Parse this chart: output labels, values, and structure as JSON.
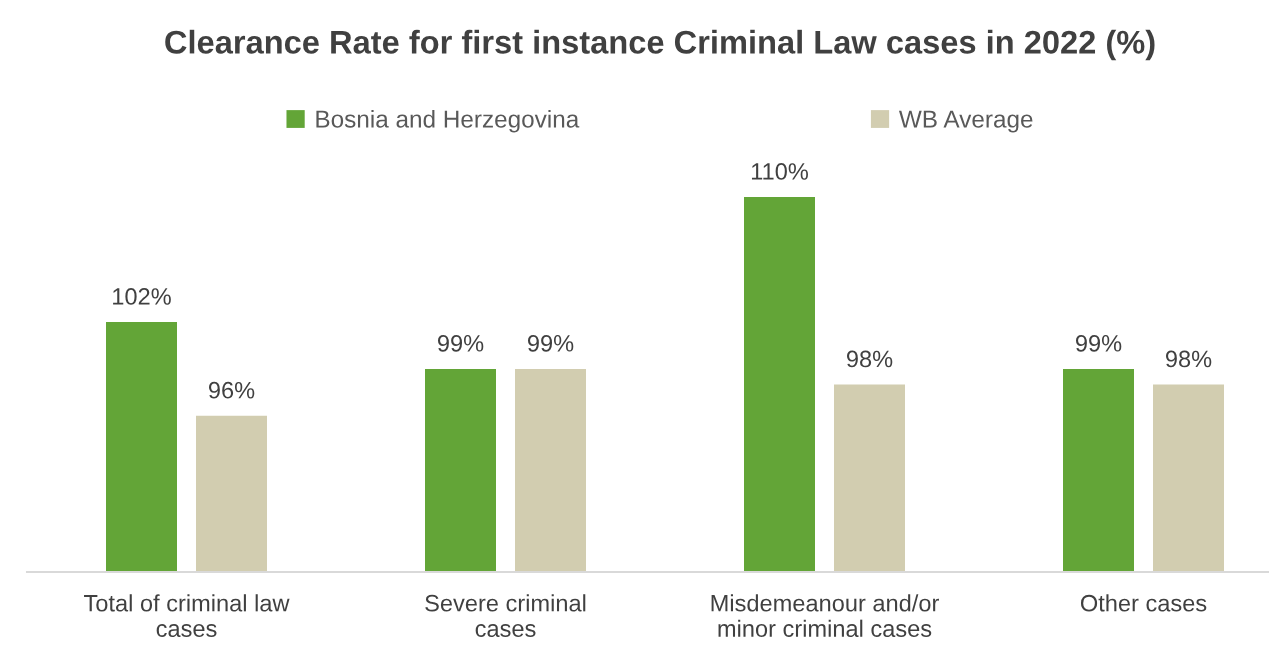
{
  "chart_data": {
    "type": "bar",
    "title": "Clearance Rate for first instance Criminal Law cases in 2022 (%)",
    "categories": [
      "Total of criminal law cases",
      "Severe criminal cases",
      "Misdemeanour and/or minor criminal cases",
      "Other cases"
    ],
    "series": [
      {
        "name": "Bosnia and Herzegovina",
        "color": "#63a537",
        "values": [
          102,
          99,
          110,
          99
        ],
        "value_labels": [
          "102%",
          "99%",
          "110%",
          "99%"
        ]
      },
      {
        "name": "WB Average",
        "color": "#d2cdb0",
        "values": [
          96,
          99,
          98,
          98
        ],
        "value_labels": [
          "96%",
          "99%",
          "98%",
          "98%"
        ]
      }
    ],
    "ylim": [
      86,
      110
    ],
    "legend": "top",
    "tick_labels": "x",
    "grid": false
  }
}
